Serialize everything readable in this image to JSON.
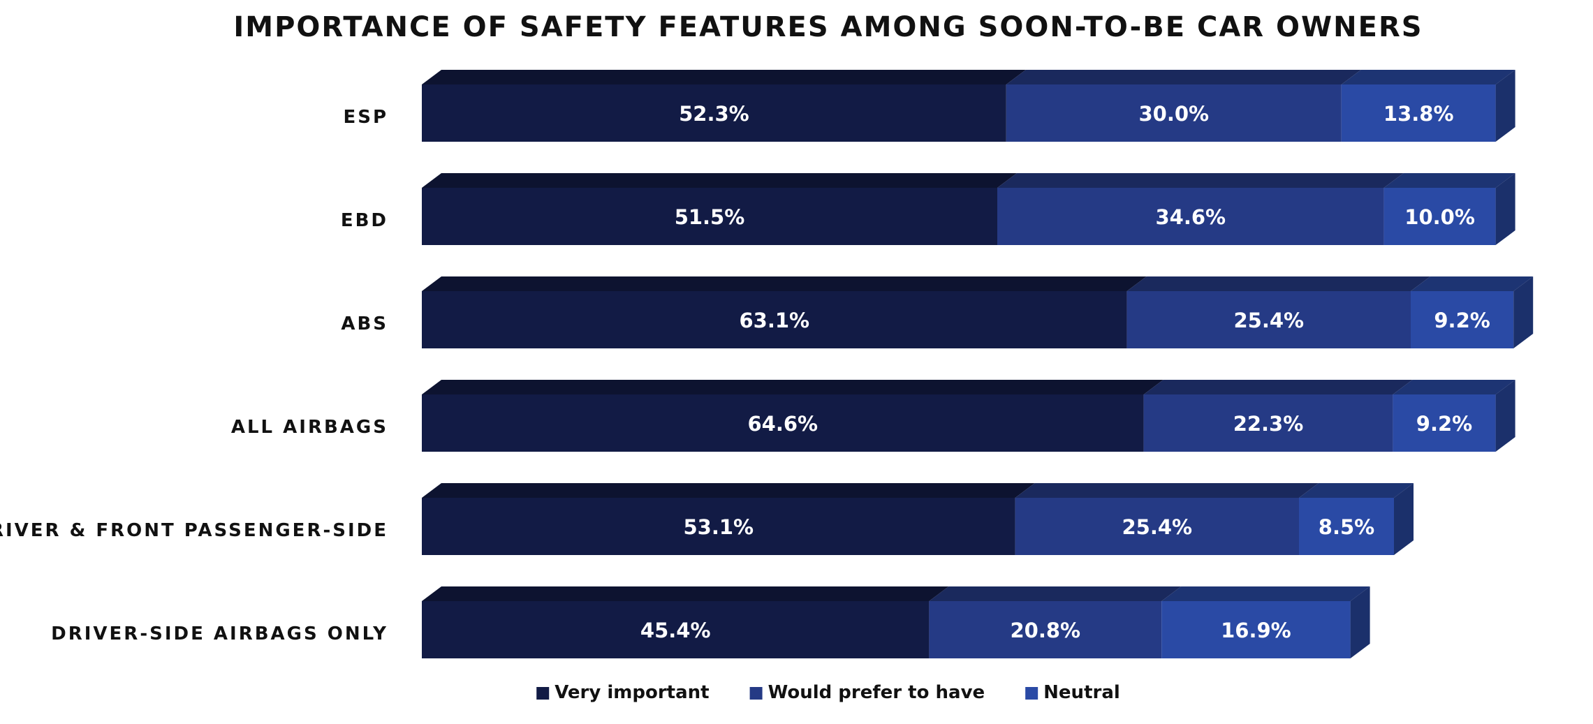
{
  "chart_data": {
    "type": "bar",
    "orientation": "horizontal",
    "stacked": true,
    "title": "IMPORTANCE OF SAFETY FEATURES AMONG SOON-TO-BE CAR OWNERS",
    "categories": [
      "ESP",
      "EBD",
      "ABS",
      "ALL AIRBAGS",
      "DRIVER & FRONT PASSENGER-SIDE",
      "DRIVER-SIDE AIRBAGS ONLY"
    ],
    "series": [
      {
        "name": "Very important",
        "values": [
          52.3,
          51.5,
          63.1,
          64.6,
          53.1,
          45.4
        ],
        "labels": [
          "52.3%",
          "51.5%",
          "63.1%",
          "64.6%",
          "53.1%",
          "45.4%"
        ],
        "color": "#121b45"
      },
      {
        "name": "Would prefer to have",
        "values": [
          30.0,
          34.6,
          25.4,
          22.3,
          25.4,
          20.8
        ],
        "labels": [
          "30.0%",
          "34.6%",
          "25.4%",
          "22.3%",
          "25.4%",
          "20.8%"
        ],
        "color": "#253a85"
      },
      {
        "name": "Neutral",
        "values": [
          13.8,
          10.0,
          9.2,
          9.2,
          8.5,
          16.9
        ],
        "labels": [
          "13.8%",
          "10.0%",
          "9.2%",
          "9.2%",
          "8.5%",
          "16.9%"
        ],
        "color": "#2a4aa5"
      }
    ],
    "xlim": [
      0,
      100
    ],
    "grid": false,
    "legend": "bottom-center"
  }
}
